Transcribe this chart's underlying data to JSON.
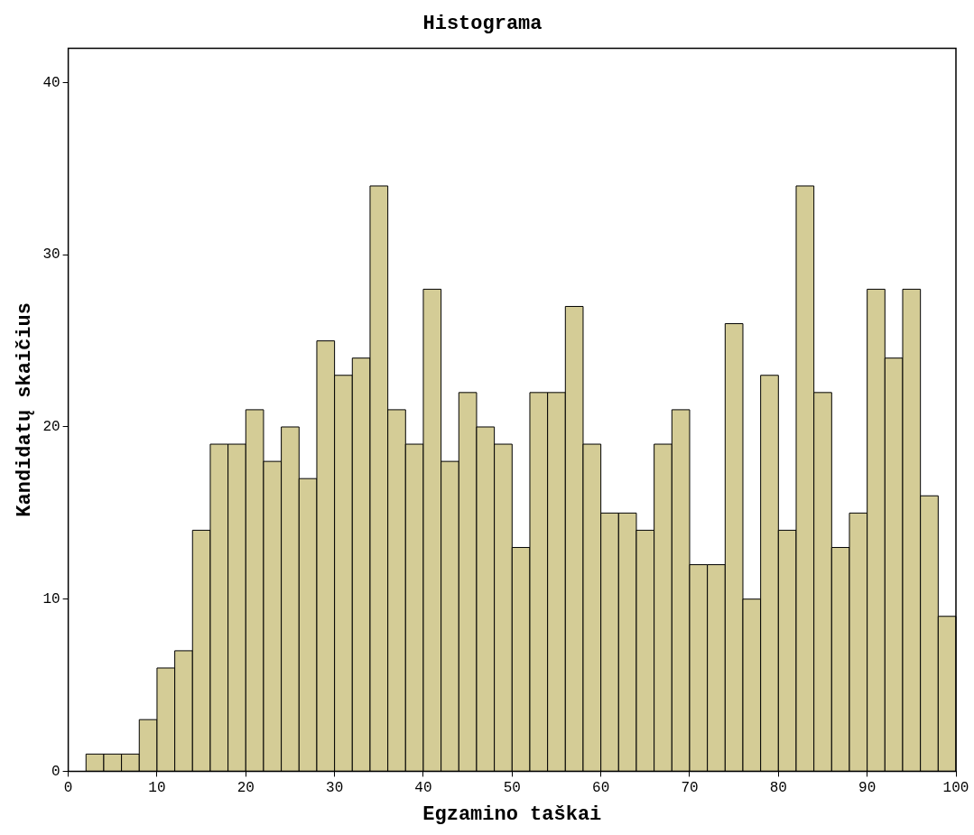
{
  "chart_data": {
    "type": "histogram",
    "title": "Histograma",
    "xlabel": "Egzamino taškai",
    "ylabel": "Kandidatų skaičius",
    "bins": [
      2,
      4,
      6,
      8,
      10,
      12,
      14,
      16,
      18,
      20,
      22,
      24,
      26,
      28,
      30,
      32,
      34,
      36,
      38,
      40,
      42,
      44,
      46,
      48,
      50,
      52,
      54,
      56,
      58,
      60,
      62,
      64,
      66,
      68,
      70,
      72,
      74,
      76,
      78,
      80,
      82,
      84,
      86,
      88,
      90,
      92,
      94,
      96,
      98,
      100
    ],
    "values": [
      1,
      1,
      1,
      3,
      6,
      7,
      14,
      19,
      19,
      21,
      18,
      20,
      17,
      25,
      23,
      24,
      34,
      21,
      19,
      28,
      18,
      22,
      20,
      19,
      13,
      22,
      22,
      27,
      19,
      15,
      15,
      14,
      19,
      21,
      12,
      12,
      26,
      10,
      23,
      14,
      34,
      22,
      13,
      15,
      28,
      24,
      28,
      16,
      9
    ],
    "color": "#d4cc96",
    "xlim": [
      0,
      100
    ],
    "xticks": [
      0,
      10,
      20,
      30,
      40,
      50,
      60,
      70,
      80,
      90,
      100
    ],
    "ylim": [
      0,
      42
    ],
    "yticks": [
      0,
      10,
      20,
      30,
      40
    ],
    "grid": false,
    "legend": false
  }
}
